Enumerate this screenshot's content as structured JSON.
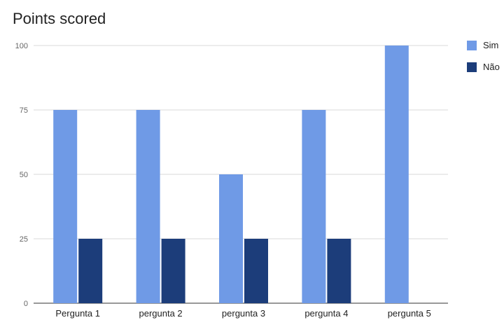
{
  "chart_data": {
    "type": "bar",
    "title": "Points scored",
    "xlabel": "",
    "ylabel": "",
    "categories": [
      "Pergunta 1",
      "pergunta 2",
      "pergunta 3",
      "pergunta 4",
      "pergunta 5"
    ],
    "series": [
      {
        "name": "Sim",
        "color": "#6f9ae6",
        "values": [
          75,
          75,
          50,
          75,
          100
        ]
      },
      {
        "name": "Não",
        "color": "#1c3d7a",
        "values": [
          25,
          25,
          25,
          25,
          0
        ]
      }
    ],
    "ylim": [
      0,
      100
    ],
    "yticks": [
      0,
      25,
      50,
      75,
      100
    ],
    "grid": true,
    "legend": "right"
  }
}
